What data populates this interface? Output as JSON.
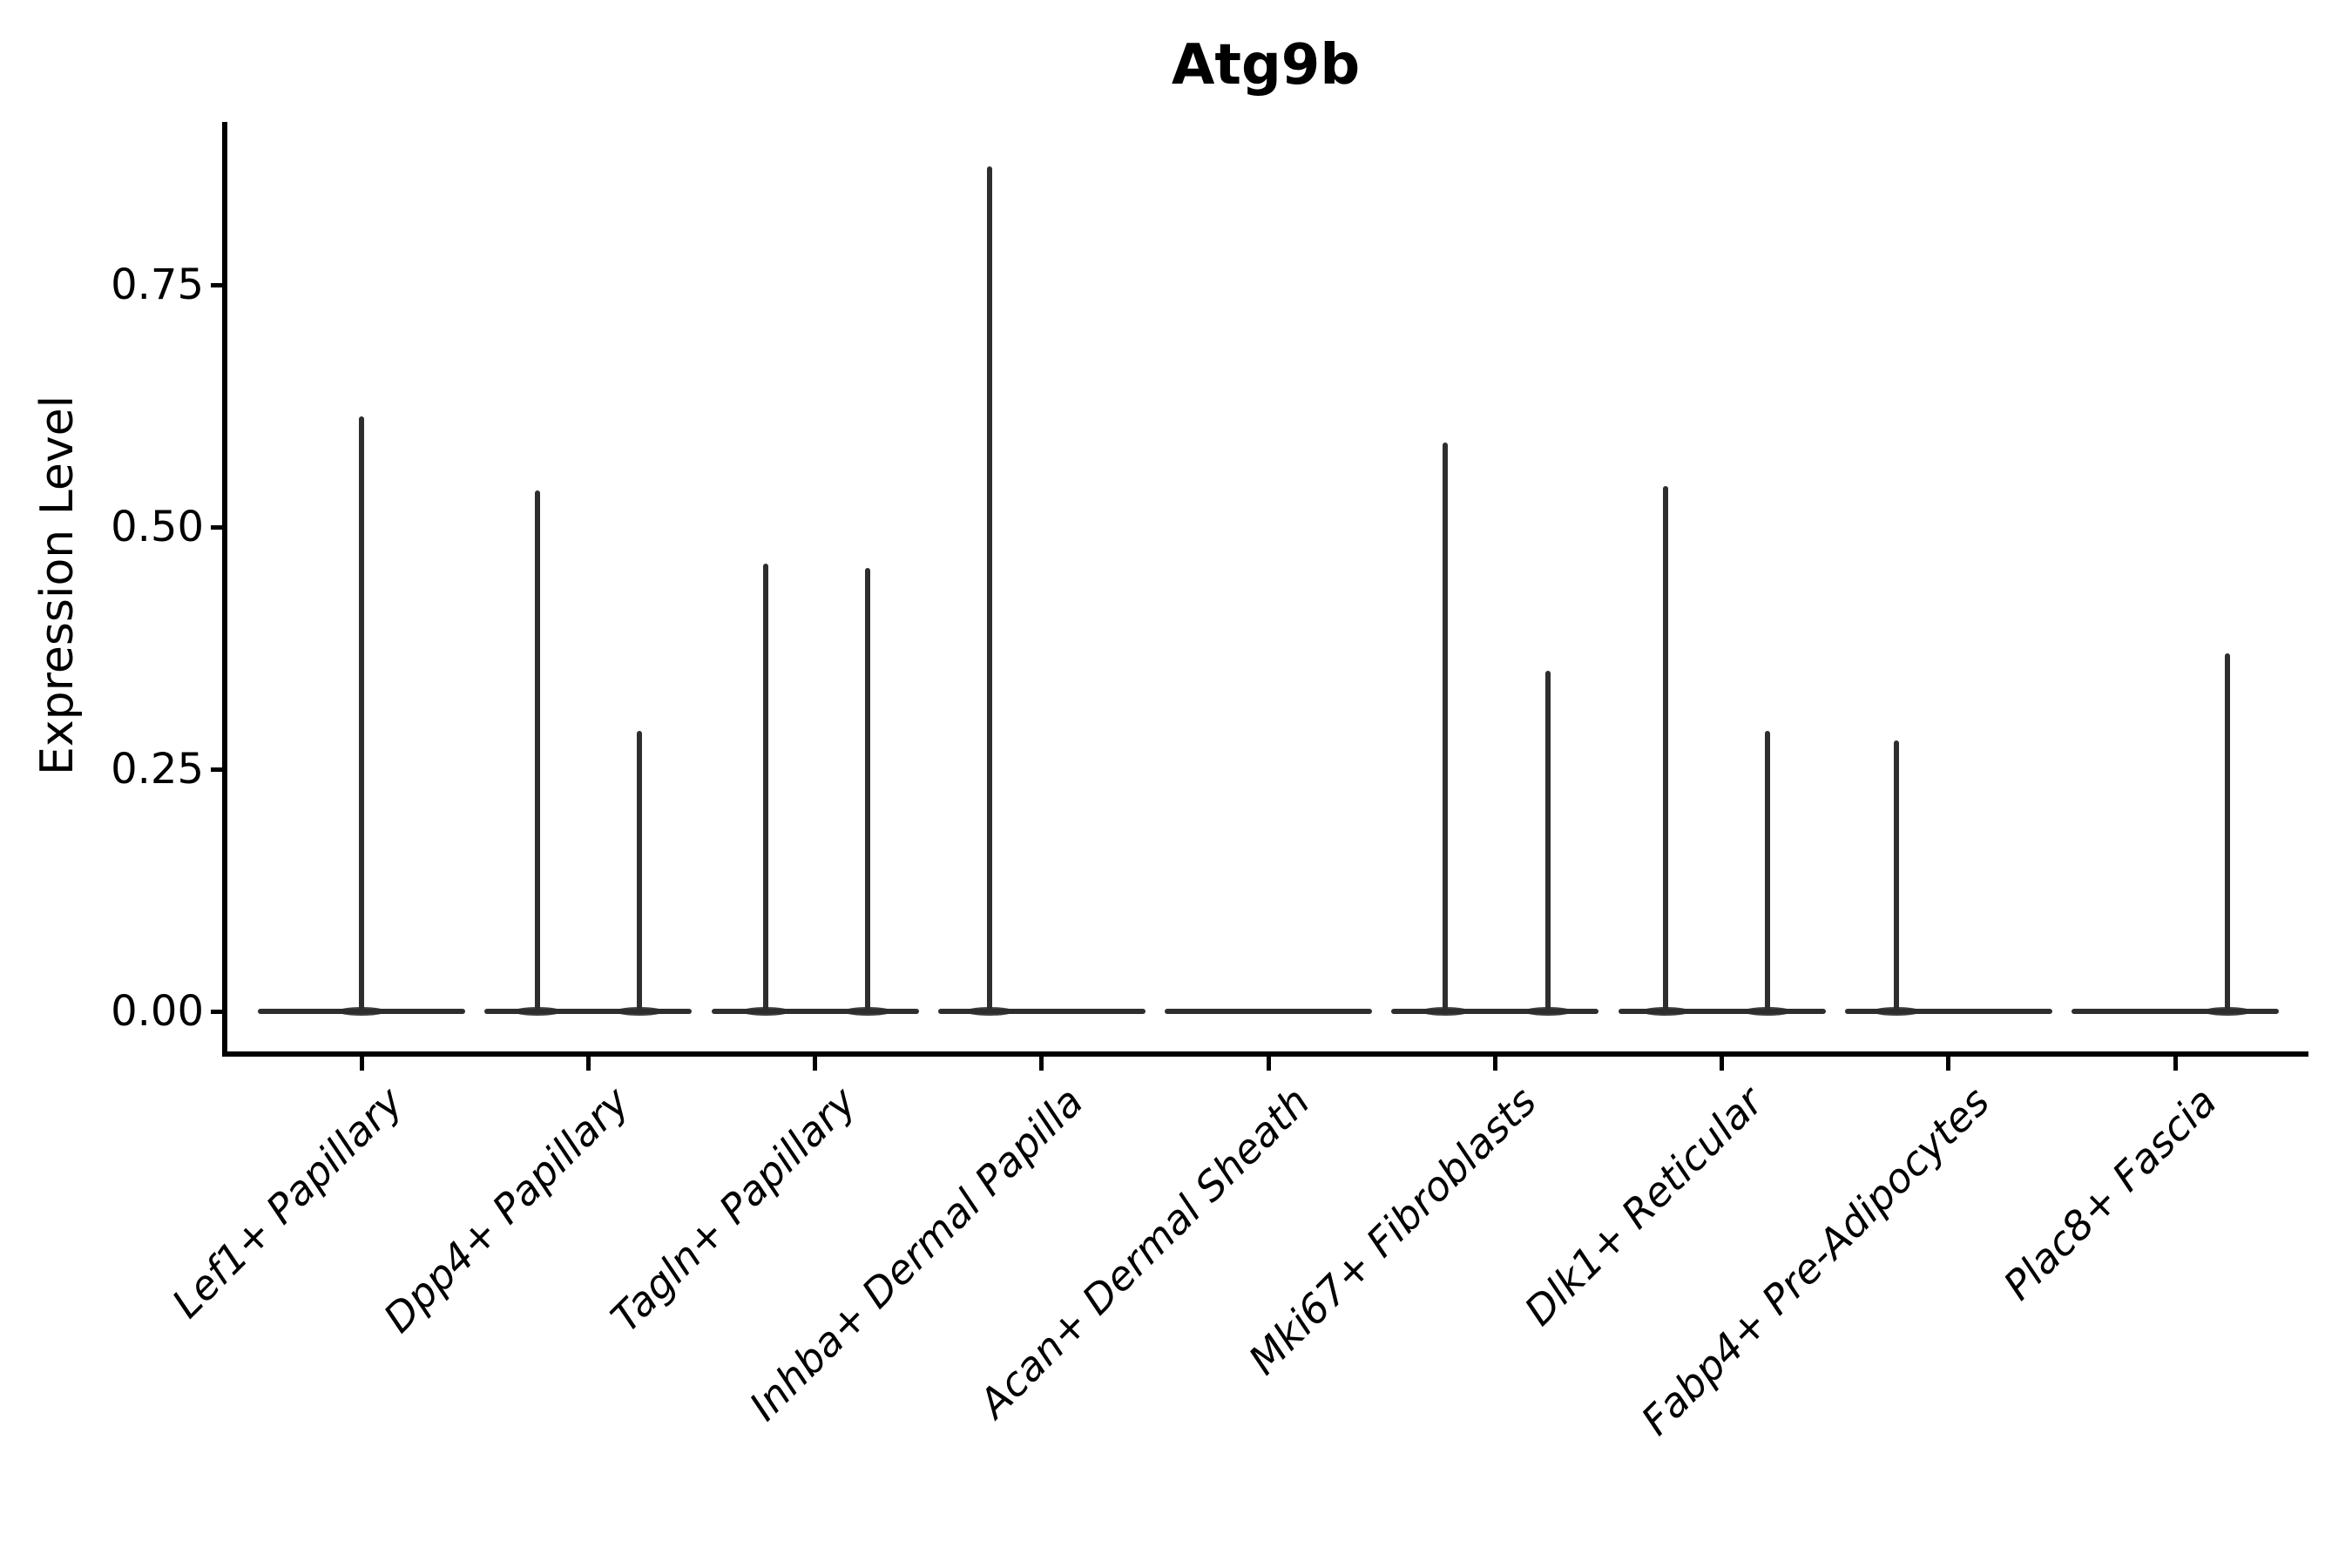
{
  "title": "Atg9b",
  "axes": {
    "y_label": "Expression Level",
    "y_tick_labels": [
      "0.00",
      "0.25",
      "0.50",
      "0.75"
    ]
  },
  "chart_data": {
    "type": "violin",
    "title": "Atg9b",
    "xlabel": "",
    "ylabel": "Expression Level",
    "categories": [
      "Lef1+ Papillary",
      "Dpp4+ Papillary",
      "Tagln+ Papillary",
      "Inhba+ Dermal Papilla",
      "Acan+ Dermal Sheath",
      "Mki67+ Fibroblasts",
      "Dlk1+ Reticular",
      "Fabp4+ Pre-Adipocytes",
      "Plac8+ Fascia"
    ],
    "description": "Each category shows a flat violin baseline at expression 0 with narrow spikes for the few expressing cells.",
    "peak_values": [
      [
        0.61
      ],
      [
        0.54,
        0.29
      ],
      [
        0.46,
        0.46
      ],
      [
        0.87
      ],
      [],
      [
        0.59,
        0.35
      ],
      [
        0.54,
        0.29
      ],
      [
        0.28
      ],
      [
        0.37
      ]
    ],
    "spikes": [
      [
        {
          "dx": 0,
          "value": 0.614
        }
      ],
      [
        {
          "dx": -58,
          "value": 0.538
        },
        {
          "dx": 59,
          "value": 0.29
        }
      ],
      [
        {
          "dx": -57,
          "value": 0.462
        },
        {
          "dx": 60,
          "value": 0.458
        }
      ],
      [
        {
          "dx": -60,
          "value": 0.872
        }
      ],
      [],
      [
        {
          "dx": -57,
          "value": 0.587
        },
        {
          "dx": 61,
          "value": 0.352
        }
      ],
      [
        {
          "dx": -65,
          "value": 0.542
        },
        {
          "dx": 52,
          "value": 0.29
        }
      ],
      [
        {
          "dx": -60,
          "value": 0.28
        }
      ],
      [
        {
          "dx": 60,
          "value": 0.37
        }
      ]
    ],
    "yticks": [
      0.0,
      0.25,
      0.5,
      0.75
    ],
    "ylim": [
      -0.044,
      0.92
    ],
    "grid": false,
    "legend": "none",
    "colors": {
      "violin": "#2e2e2e",
      "axis": "#000000",
      "text": "#000000",
      "background": "#ffffff"
    }
  }
}
